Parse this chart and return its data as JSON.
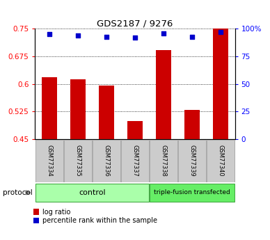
{
  "title": "GDS2187 / 9276",
  "samples": [
    "GSM77334",
    "GSM77335",
    "GSM77336",
    "GSM77337",
    "GSM77338",
    "GSM77339",
    "GSM77340"
  ],
  "log_ratio": [
    0.618,
    0.612,
    0.596,
    0.5,
    0.693,
    0.53,
    0.75
  ],
  "percentile_rank_pct": [
    95,
    94,
    93,
    92,
    96,
    93,
    97
  ],
  "ylim_left": [
    0.45,
    0.75
  ],
  "ylim_right": [
    0,
    100
  ],
  "yticks_left": [
    0.45,
    0.525,
    0.6,
    0.675,
    0.75
  ],
  "yticks_right": [
    0,
    25,
    50,
    75,
    100
  ],
  "ytick_labels_left": [
    "0.45",
    "0.525",
    "0.6",
    "0.675",
    "0.75"
  ],
  "ytick_labels_right": [
    "0",
    "25",
    "50",
    "75",
    "100%"
  ],
  "bar_color": "#cc0000",
  "dot_color": "#0000cc",
  "n_control": 4,
  "n_transfected": 3,
  "control_label": "control",
  "transfected_label": "triple-fusion transfected",
  "protocol_label": "protocol",
  "legend_bar_label": "log ratio",
  "legend_dot_label": "percentile rank within the sample",
  "control_color": "#aaffaa",
  "transfected_color": "#66ee66",
  "label_area_color": "#cccccc",
  "label_area_edge": "#aaaaaa"
}
